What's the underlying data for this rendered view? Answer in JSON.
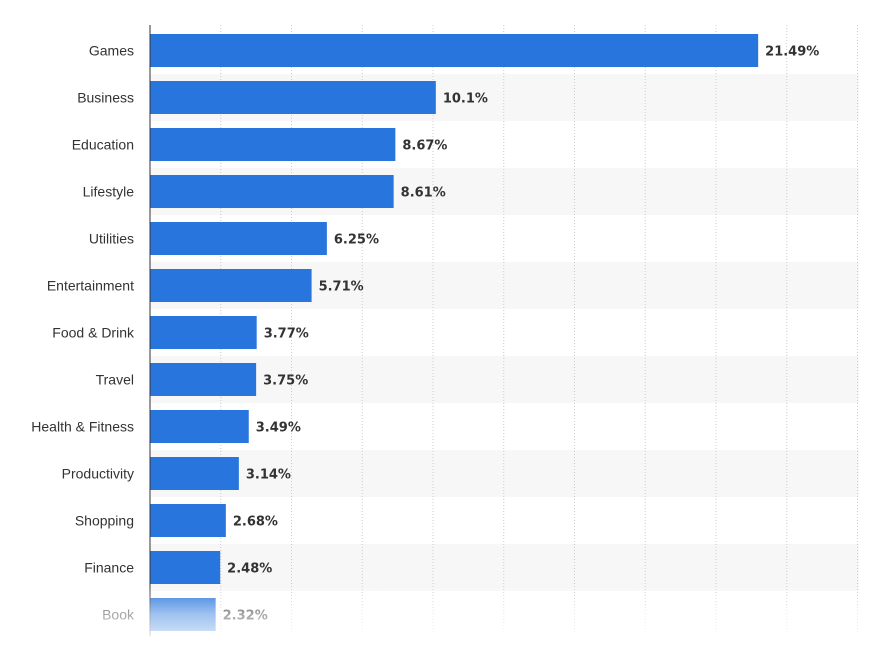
{
  "chart_data": {
    "type": "bar",
    "orientation": "horizontal",
    "categories": [
      "Games",
      "Business",
      "Education",
      "Lifestyle",
      "Utilities",
      "Entertainment",
      "Food & Drink",
      "Travel",
      "Health & Fitness",
      "Productivity",
      "Shopping",
      "Finance",
      "Book"
    ],
    "values": [
      21.49,
      10.1,
      8.67,
      8.61,
      6.25,
      5.71,
      3.77,
      3.75,
      3.49,
      3.14,
      2.68,
      2.48,
      2.32
    ],
    "value_labels": [
      "21.49%",
      "10.1%",
      "8.67%",
      "8.61%",
      "6.25%",
      "5.71%",
      "3.77%",
      "3.75%",
      "3.49%",
      "3.14%",
      "2.68%",
      "2.48%",
      "2.32%"
    ],
    "xlim": [
      0,
      25
    ],
    "grid": true,
    "legend": "none",
    "colors": {
      "bar": "#2876dd",
      "band": "#f7f7f7",
      "grid": "#cccccc",
      "axis": "#333333",
      "text": "#333333"
    }
  }
}
